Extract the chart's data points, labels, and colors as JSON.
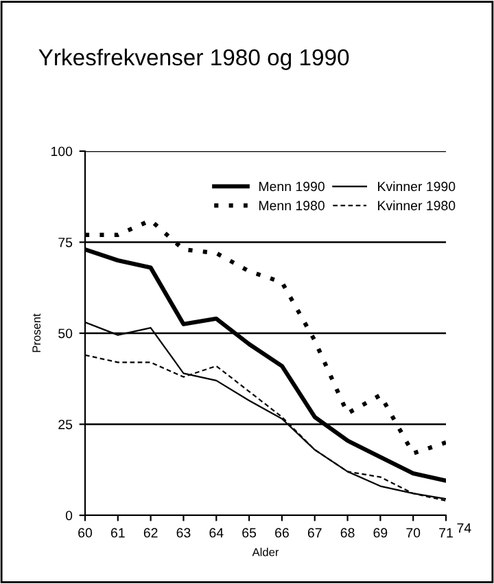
{
  "chart_data": {
    "type": "line",
    "title": "Yrkesfrekvenser 1980 og 1990",
    "xlabel": "Alder",
    "ylabel": "Prosent",
    "x": [
      60,
      61,
      62,
      63,
      64,
      65,
      66,
      67,
      68,
      69,
      70,
      71
    ],
    "series": [
      {
        "name": "Menn 1990",
        "color": "#000000",
        "line_style": "solid",
        "values": [
          73,
          70,
          68,
          52.5,
          54,
          47,
          41,
          27,
          20.5,
          16,
          11.5,
          9.5
        ]
      },
      {
        "name": "Menn 1980",
        "color": "#000000",
        "line_style": "dotted",
        "values": [
          77,
          77,
          81,
          73,
          72,
          67,
          64,
          48,
          28,
          33,
          17,
          20
        ]
      },
      {
        "name": "Kvinner 1990",
        "color": "#000000",
        "line_style": "solid",
        "values": [
          53,
          49.5,
          51.5,
          39,
          37,
          31.5,
          26.5,
          18,
          12,
          8,
          6,
          4.5
        ]
      },
      {
        "name": "Kvinner 1980",
        "color": "#000000",
        "line_style": "dashed",
        "values": [
          44,
          42,
          42,
          38,
          41,
          34,
          27,
          18,
          12,
          10.5,
          6,
          4
        ]
      }
    ],
    "xlim": [
      60,
      71
    ],
    "xticks": [
      60,
      61,
      62,
      63,
      64,
      65,
      66,
      67,
      68,
      69,
      70,
      71
    ],
    "ylim": [
      0,
      100
    ],
    "yticks": [
      0,
      25,
      50,
      75,
      100
    ],
    "annotations": [
      "74"
    ],
    "grid": "y",
    "legend": "top right",
    "marker": "none"
  }
}
